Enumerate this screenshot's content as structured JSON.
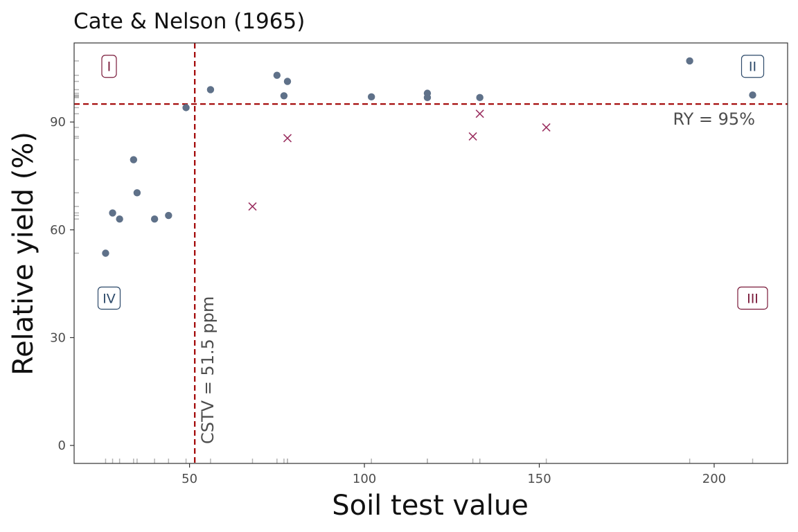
{
  "chart_data": {
    "type": "scatter",
    "title": "Cate & Nelson (1965)",
    "xlabel": "Soil test value",
    "ylabel": "Relative yield (%)",
    "xlim": [
      17,
      221
    ],
    "ylim": [
      -5,
      112
    ],
    "x_ticks": [
      50,
      100,
      150,
      200
    ],
    "y_ticks": [
      0,
      30,
      60,
      90
    ],
    "grid": false,
    "colors": {
      "points": "#5f7189",
      "outliers": "#9b3060",
      "threshold_lines": "#a00000",
      "quadrant_odd": "#7a1a3a",
      "quadrant_even": "#2d4a6a",
      "axis": "#333333"
    },
    "series": [
      {
        "marker": "circle",
        "points": [
          [
            26,
            53.5
          ],
          [
            28,
            64.7
          ],
          [
            30,
            63
          ],
          [
            34,
            79.5
          ],
          [
            35,
            70.3
          ],
          [
            40,
            63
          ],
          [
            44,
            64
          ],
          [
            49,
            94
          ],
          [
            56,
            99
          ],
          [
            75,
            103
          ],
          [
            77,
            97.3
          ],
          [
            78,
            101.3
          ],
          [
            102,
            97
          ],
          [
            118,
            98
          ],
          [
            118,
            96.8
          ],
          [
            133,
            96.8
          ],
          [
            193,
            107
          ],
          [
            211,
            97.5
          ]
        ]
      },
      {
        "marker": "x",
        "points": [
          [
            68,
            66.5
          ],
          [
            78,
            85.5
          ],
          [
            131,
            86
          ],
          [
            133,
            92.3
          ],
          [
            152,
            88.5
          ]
        ]
      }
    ],
    "reference_lines": {
      "vertical": {
        "x": 51.5,
        "label": "CSTV = 51.5 ppm"
      },
      "horizontal": {
        "y": 95,
        "label": "RY = 95%"
      }
    },
    "quadrant_labels": [
      {
        "text": "I",
        "x": 27,
        "y": 105.5,
        "tone": "odd"
      },
      {
        "text": "II",
        "x": 211,
        "y": 105.5,
        "tone": "even"
      },
      {
        "text": "III",
        "x": 211,
        "y": 41,
        "tone": "odd"
      },
      {
        "text": "IV",
        "x": 27,
        "y": 41,
        "tone": "even"
      }
    ],
    "rug": {
      "x": [
        26,
        28,
        30,
        34,
        35,
        40,
        44,
        49,
        56,
        68,
        75,
        77,
        78,
        78,
        102,
        118,
        118,
        131,
        133,
        133,
        152,
        193,
        211
      ],
      "y": [
        53.5,
        64.7,
        63,
        79.5,
        70.3,
        63,
        64,
        94,
        99,
        66.5,
        103,
        97.3,
        101.3,
        85.5,
        97,
        98,
        96.8,
        86,
        92.3,
        96.8,
        88.5,
        107,
        97.5
      ]
    }
  }
}
